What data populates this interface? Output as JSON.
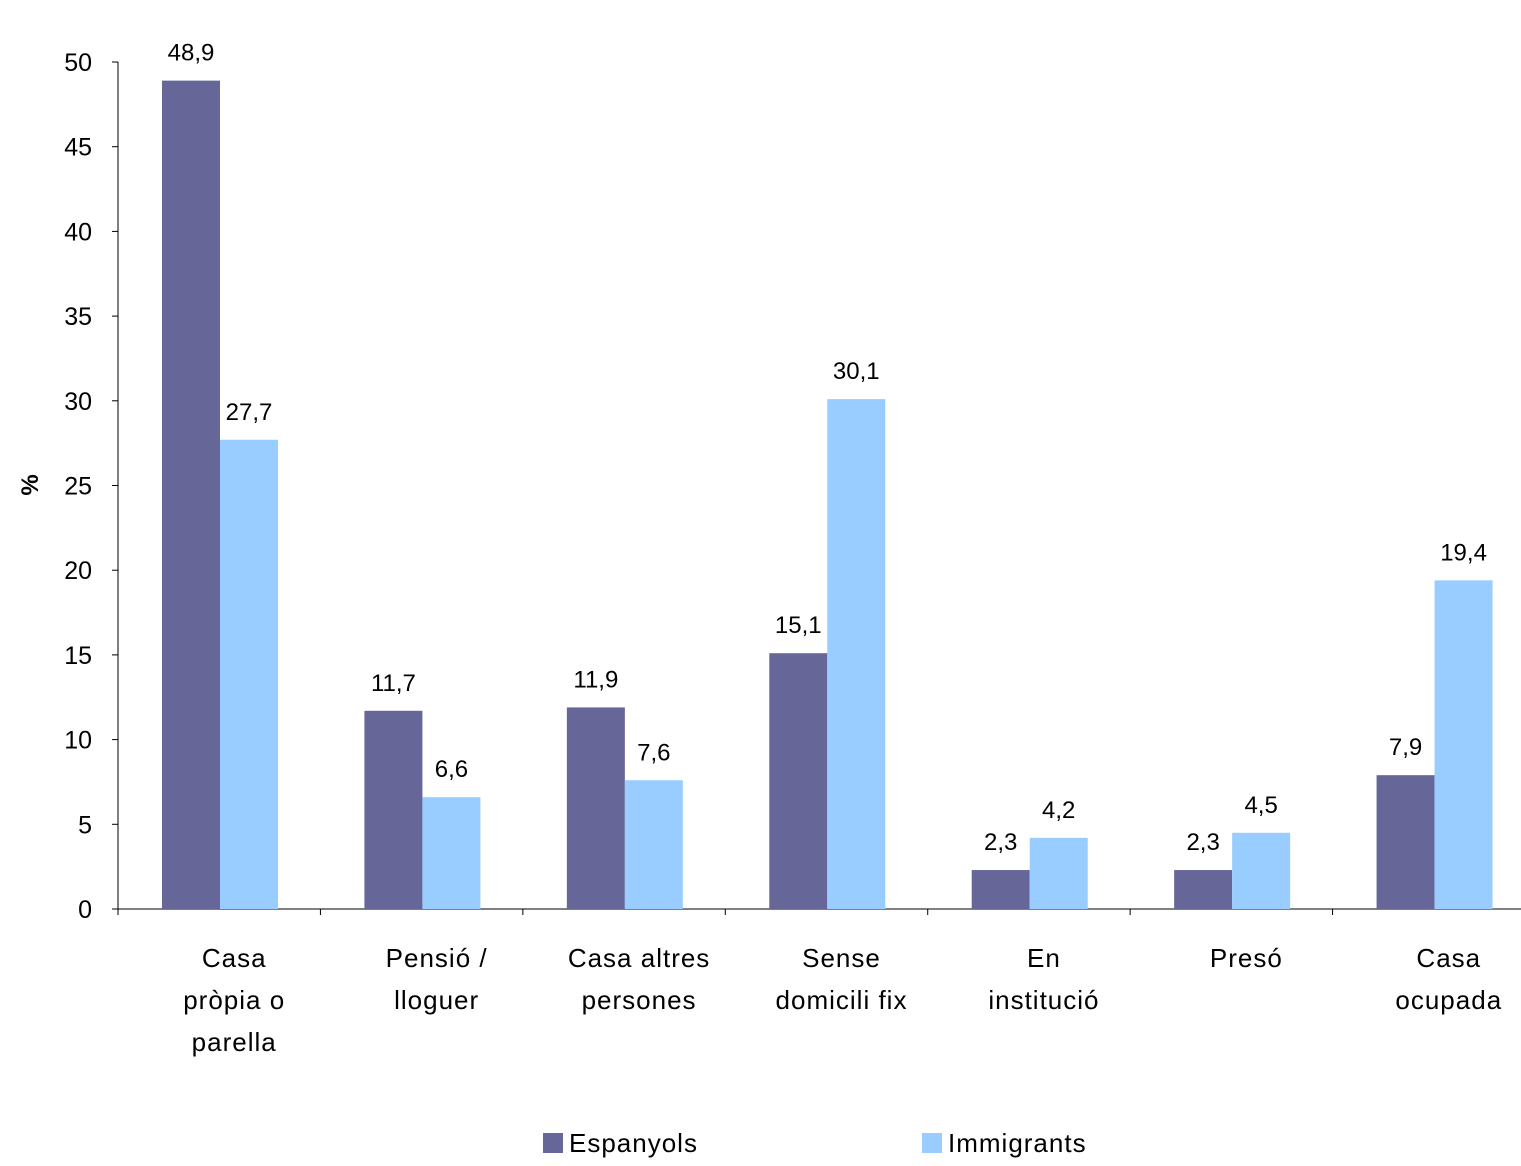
{
  "chart_data": {
    "type": "bar",
    "ylabel": "%",
    "ylim": [
      0,
      50
    ],
    "yticks": [
      0,
      5,
      10,
      15,
      20,
      25,
      30,
      35,
      40,
      45,
      50
    ],
    "grid": false,
    "legend_position": "bottom",
    "categories": [
      [
        "Casa",
        "pròpia o",
        "parella"
      ],
      [
        "Pensió /",
        "lloguer"
      ],
      [
        "Casa altres",
        "persones"
      ],
      [
        "Sense",
        "domicili fix"
      ],
      [
        "En",
        "institució"
      ],
      [
        "Presó"
      ],
      [
        "Casa",
        "ocupada"
      ]
    ],
    "series": [
      {
        "name": "Espanyols",
        "color": "#666699",
        "values": [
          48.9,
          11.7,
          11.9,
          15.1,
          2.3,
          2.3,
          7.9
        ],
        "labels": [
          "48,9",
          "11,7",
          "11,9",
          "15,1",
          "2,3",
          "2,3",
          "7,9"
        ]
      },
      {
        "name": "Immigrants",
        "color": "#99ccff",
        "values": [
          27.7,
          6.6,
          7.6,
          30.1,
          4.2,
          4.5,
          19.4
        ],
        "labels": [
          "27,7",
          "6,6",
          "7,6",
          "30,1",
          "4,2",
          "4,5",
          "19,4"
        ]
      }
    ]
  }
}
